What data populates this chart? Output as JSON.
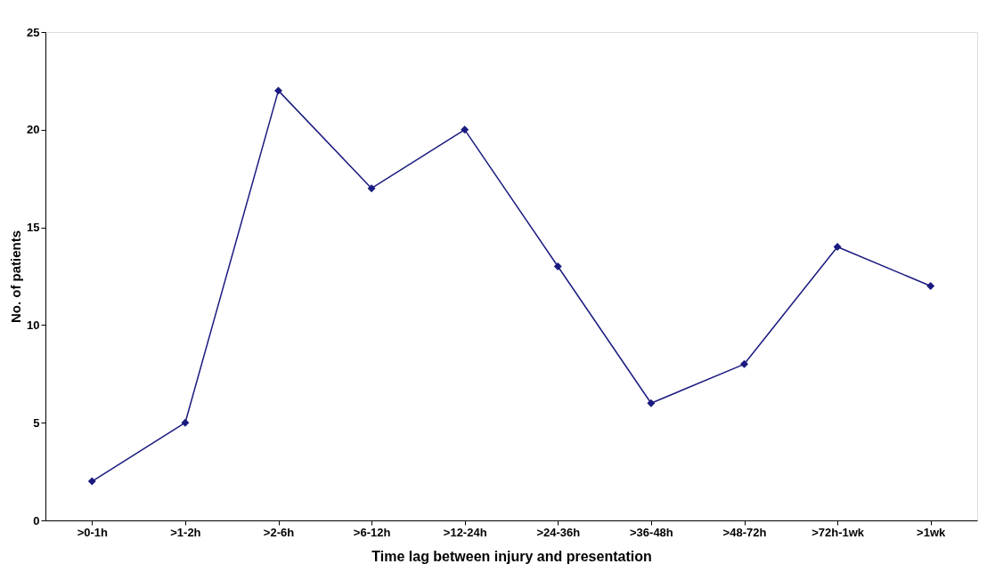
{
  "chart_data": {
    "type": "line",
    "xlabel": "Time lag between injury and presentation",
    "ylabel": "No. of patients",
    "categories": [
      ">0-1h",
      ">1-2h",
      ">2-6h",
      ">6-12h",
      ">12-24h",
      ">24-36h",
      ">36-48h",
      ">48-72h",
      ">72h-1wk",
      ">1wk"
    ],
    "series": [
      {
        "color": "#1a1a80",
        "values": [
          2,
          5,
          22,
          17,
          20,
          13,
          6,
          8,
          14,
          12
        ]
      }
    ],
    "ylim": [
      0,
      25
    ],
    "yticks": [
      0,
      5,
      10,
      15,
      20,
      25
    ],
    "grid": false,
    "marker": "diamond",
    "line_style": "solid"
  }
}
